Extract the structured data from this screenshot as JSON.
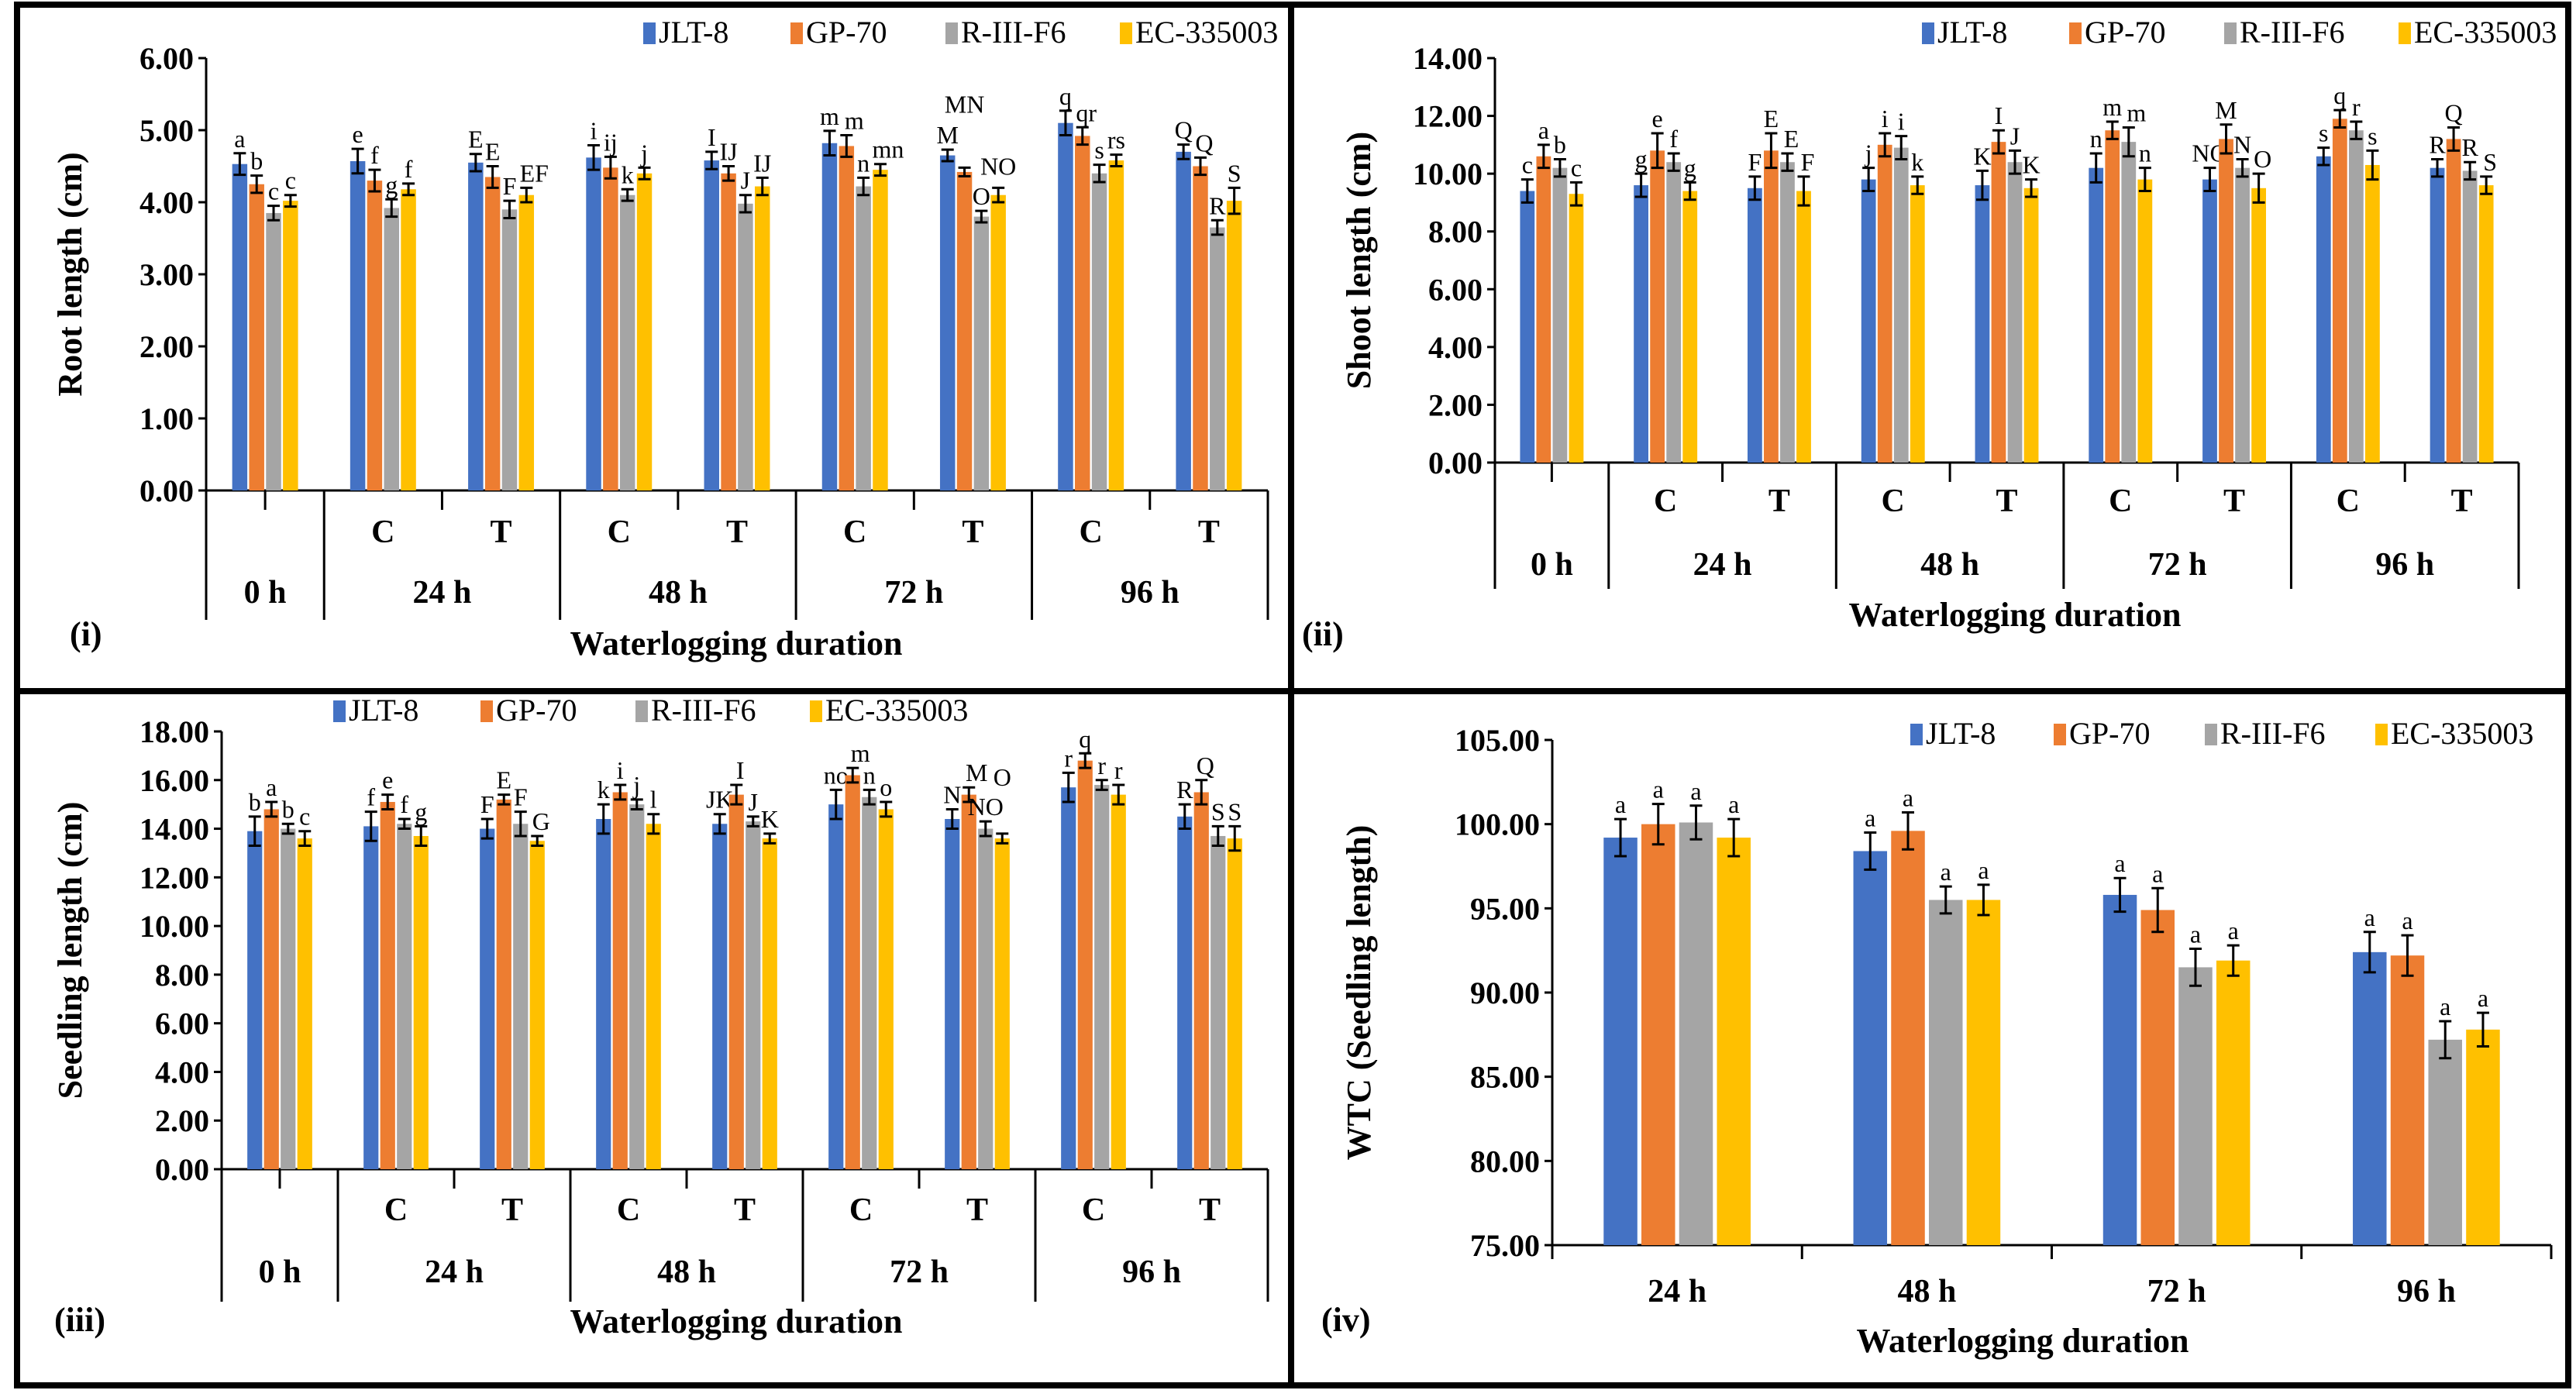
{
  "colors": {
    "JLT-8": "#4472C4",
    "GP-70": "#ED7D31",
    "R-III-F6": "#A5A5A5",
    "EC-335003": "#FFC000"
  },
  "chart_data": [
    {
      "type": "bar",
      "panel_label": "(i)",
      "ylabel": "Root length (cm)",
      "xlabel": "Waterlogging duration",
      "ylim": [
        0,
        6
      ],
      "yticks": [
        "0.00",
        "1.00",
        "2.00",
        "3.00",
        "4.00",
        "5.00",
        "6.00"
      ],
      "legend": [
        "JLT-8",
        "GP-70",
        "R-III-F6",
        "EC-335003"
      ],
      "legend_position": "top-right",
      "categories": [
        "0 h",
        "24 h C",
        "24 h T",
        "48 h C",
        "48 h T",
        "72 h C",
        "72 h T",
        "96 h C",
        "96 h T"
      ],
      "sub_labels": [
        "",
        "C",
        "T",
        "C",
        "T",
        "C",
        "T",
        "C",
        "T"
      ],
      "hour_labels": [
        "0 h",
        "24 h",
        "48 h",
        "72 h",
        "96 h"
      ],
      "series": [
        {
          "name": "JLT-8",
          "values": [
            4.53,
            4.57,
            4.55,
            4.62,
            4.58,
            4.82,
            4.65,
            5.1,
            4.7
          ],
          "error": [
            0.15,
            0.17,
            0.12,
            0.17,
            0.12,
            0.17,
            0.08,
            0.17,
            0.1
          ],
          "letters": [
            "a",
            "e",
            "E",
            "i",
            "I",
            "m",
            "M",
            "q",
            "Q"
          ]
        },
        {
          "name": "GP-70",
          "values": [
            4.25,
            4.3,
            4.35,
            4.48,
            4.4,
            4.78,
            4.42,
            4.92,
            4.5
          ],
          "error": [
            0.12,
            0.15,
            0.15,
            0.15,
            0.1,
            0.15,
            0.06,
            0.12,
            0.12
          ],
          "letters": [
            "b",
            "f",
            "E",
            "ij",
            "IJ",
            "m",
            "MN",
            "qr",
            "Q"
          ]
        },
        {
          "name": "R-III-F6",
          "values": [
            3.85,
            3.92,
            3.9,
            4.1,
            3.98,
            4.22,
            3.8,
            4.4,
            3.65
          ],
          "error": [
            0.1,
            0.12,
            0.12,
            0.08,
            0.12,
            0.12,
            0.08,
            0.12,
            0.1
          ],
          "letters": [
            "c",
            "g",
            "F",
            "k",
            "J",
            "n",
            "O",
            "s",
            "R"
          ]
        },
        {
          "name": "EC-335003",
          "values": [
            4.02,
            4.18,
            4.1,
            4.4,
            4.22,
            4.45,
            4.1,
            4.58,
            4.02
          ],
          "error": [
            0.08,
            0.08,
            0.1,
            0.08,
            0.12,
            0.08,
            0.1,
            0.08,
            0.18
          ],
          "letters": [
            "c",
            "f",
            "EF",
            "j",
            "IJ",
            "mn",
            "NO",
            "rs",
            "S"
          ]
        }
      ]
    },
    {
      "type": "bar",
      "panel_label": "(ii)",
      "ylabel": "Shoot length (cm)",
      "xlabel": "Waterlogging duration",
      "ylim": [
        0,
        14
      ],
      "yticks": [
        "0.00",
        "2.00",
        "4.00",
        "6.00",
        "8.00",
        "10.00",
        "12.00",
        "14.00"
      ],
      "legend": [
        "JLT-8",
        "GP-70",
        "R-III-F6",
        "EC-335003"
      ],
      "legend_position": "top-right",
      "categories": [
        "0 h",
        "24 h C",
        "24 h T",
        "48 h C",
        "48 h T",
        "72 h C",
        "72 h T",
        "96 h C",
        "96 h T"
      ],
      "sub_labels": [
        "",
        "C",
        "T",
        "C",
        "T",
        "C",
        "T",
        "C",
        "T"
      ],
      "hour_labels": [
        "0 h",
        "24 h",
        "48 h",
        "72 h",
        "96 h"
      ],
      "series": [
        {
          "name": "JLT-8",
          "values": [
            9.4,
            9.6,
            9.5,
            9.8,
            9.6,
            10.2,
            9.8,
            10.6,
            10.2
          ],
          "error": [
            0.4,
            0.4,
            0.4,
            0.4,
            0.5,
            0.5,
            0.4,
            0.3,
            0.3
          ],
          "letters": [
            "c",
            "g",
            "F",
            "j",
            "K",
            "n",
            "NO",
            "s",
            "R"
          ]
        },
        {
          "name": "GP-70",
          "values": [
            10.6,
            10.8,
            10.8,
            11.0,
            11.1,
            11.5,
            11.2,
            11.9,
            11.2
          ],
          "error": [
            0.4,
            0.6,
            0.6,
            0.4,
            0.4,
            0.3,
            0.5,
            0.3,
            0.4
          ],
          "letters": [
            "a",
            "e",
            "E",
            "i",
            "I",
            "m",
            "M",
            "q",
            "Q"
          ]
        },
        {
          "name": "R-III-F6",
          "values": [
            10.2,
            10.4,
            10.4,
            10.9,
            10.4,
            11.1,
            10.2,
            11.5,
            10.1
          ],
          "error": [
            0.3,
            0.3,
            0.3,
            0.4,
            0.4,
            0.5,
            0.3,
            0.3,
            0.3
          ],
          "letters": [
            "b",
            "f",
            "E",
            "i",
            "J",
            "m",
            "N",
            "r",
            "R"
          ]
        },
        {
          "name": "EC-335003",
          "values": [
            9.3,
            9.4,
            9.4,
            9.6,
            9.5,
            9.8,
            9.5,
            10.3,
            9.6
          ],
          "error": [
            0.4,
            0.3,
            0.5,
            0.3,
            0.3,
            0.4,
            0.5,
            0.5,
            0.3
          ],
          "letters": [
            "c",
            "g",
            "F",
            "k",
            "K",
            "n",
            "O",
            "s",
            "S"
          ]
        }
      ]
    },
    {
      "type": "bar",
      "panel_label": "(iii)",
      "ylabel": "Seedling length (cm)",
      "xlabel": "Waterlogging duration",
      "ylim": [
        0,
        18
      ],
      "yticks": [
        "0.00",
        "2.00",
        "4.00",
        "6.00",
        "8.00",
        "10.00",
        "12.00",
        "14.00",
        "16.00",
        "18.00"
      ],
      "legend": [
        "JLT-8",
        "GP-70",
        "R-III-F6",
        "EC-335003"
      ],
      "legend_position": "top-center",
      "categories": [
        "0 h",
        "24 h C",
        "24 h T",
        "48 h C",
        "48 h T",
        "72 h C",
        "72 h T",
        "96 h C",
        "96 h T"
      ],
      "sub_labels": [
        "",
        "C",
        "T",
        "C",
        "T",
        "C",
        "T",
        "C",
        "T"
      ],
      "hour_labels": [
        "0 h",
        "24 h",
        "48 h",
        "72 h",
        "96 h"
      ],
      "series": [
        {
          "name": "JLT-8",
          "values": [
            13.9,
            14.1,
            14.0,
            14.4,
            14.2,
            15.0,
            14.4,
            15.7,
            14.5
          ],
          "error": [
            0.6,
            0.6,
            0.4,
            0.6,
            0.4,
            0.6,
            0.4,
            0.6,
            0.5
          ],
          "letters": [
            "b",
            "f",
            "F",
            "k",
            "JK",
            "no",
            "N",
            "r",
            "R"
          ]
        },
        {
          "name": "GP-70",
          "values": [
            14.8,
            15.1,
            15.2,
            15.5,
            15.4,
            16.2,
            15.4,
            16.8,
            15.5
          ],
          "error": [
            0.3,
            0.3,
            0.2,
            0.3,
            0.4,
            0.3,
            0.3,
            0.3,
            0.5
          ],
          "letters": [
            "a",
            "e",
            "E",
            "i",
            "I",
            "m",
            "M",
            "q",
            "Q"
          ]
        },
        {
          "name": "R-III-F6",
          "values": [
            14.0,
            14.2,
            14.2,
            15.0,
            14.3,
            15.3,
            14.0,
            15.8,
            13.7
          ],
          "error": [
            0.2,
            0.2,
            0.5,
            0.2,
            0.2,
            0.3,
            0.3,
            0.2,
            0.4
          ],
          "letters": [
            "b",
            "f",
            "F",
            "j",
            "J",
            "n",
            "NO",
            "r",
            "S"
          ]
        },
        {
          "name": "EC-335003",
          "values": [
            13.6,
            13.7,
            13.5,
            14.2,
            13.6,
            14.8,
            13.6,
            15.4,
            13.6
          ],
          "error": [
            0.3,
            0.4,
            0.2,
            0.4,
            0.2,
            0.3,
            0.2,
            0.4,
            0.5
          ],
          "letters": [
            "c",
            "g",
            "G",
            "l",
            "K",
            "o",
            "O",
            "r",
            "S"
          ]
        }
      ]
    },
    {
      "type": "bar",
      "panel_label": "(iv)",
      "ylabel": "WTC (Seedling length)",
      "xlabel": "Waterlogging duration",
      "ylim": [
        75,
        105
      ],
      "yticks": [
        "75.00",
        "80.00",
        "85.00",
        "90.00",
        "95.00",
        "100.00",
        "105.00"
      ],
      "legend": [
        "JLT-8",
        "GP-70",
        "R-III-F6",
        "EC-335003"
      ],
      "legend_position": "top-right",
      "categories": [
        "24 h",
        "48 h",
        "72 h",
        "96 h"
      ],
      "series": [
        {
          "name": "JLT-8",
          "values": [
            99.2,
            98.4,
            95.8,
            92.4
          ],
          "error": [
            1.1,
            1.1,
            1.0,
            1.2
          ],
          "letters": [
            "a",
            "a",
            "a",
            "a"
          ]
        },
        {
          "name": "GP-70",
          "values": [
            100.0,
            99.6,
            94.9,
            92.2
          ],
          "error": [
            1.2,
            1.1,
            1.3,
            1.2
          ],
          "letters": [
            "a",
            "a",
            "a",
            "a"
          ]
        },
        {
          "name": "R-III-F6",
          "values": [
            100.1,
            95.5,
            91.5,
            87.2
          ],
          "error": [
            1.0,
            0.8,
            1.1,
            1.1
          ],
          "letters": [
            "a",
            "a",
            "a",
            "a"
          ]
        },
        {
          "name": "EC-335003",
          "values": [
            99.2,
            95.5,
            91.9,
            87.8
          ],
          "error": [
            1.1,
            0.9,
            0.9,
            1.0
          ],
          "letters": [
            "a",
            "a",
            "a",
            "a"
          ]
        }
      ]
    }
  ]
}
